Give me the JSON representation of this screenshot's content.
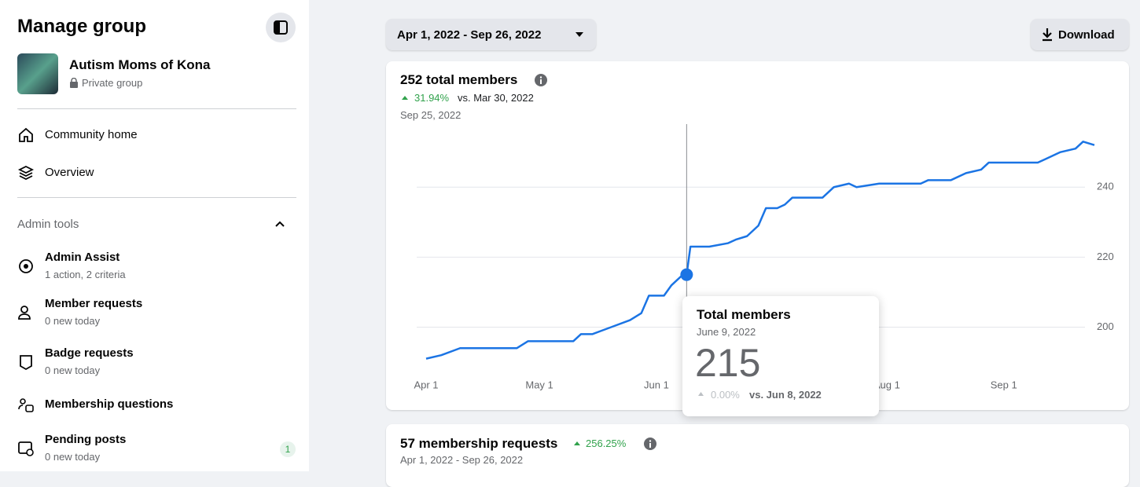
{
  "sidebar": {
    "title": "Manage group",
    "group_name": "Autism Moms of Kona",
    "privacy": "Private group",
    "nav": [
      "Community home",
      "Overview"
    ],
    "admin_tools": {
      "title": "Admin tools",
      "items": [
        {
          "label": "Admin Assist",
          "sub": "1 action, 2 criteria"
        },
        {
          "label": "Member requests",
          "sub": "0 new today"
        },
        {
          "label": "Badge requests",
          "sub": "0 new today"
        },
        {
          "label": "Membership questions"
        },
        {
          "label": "Pending posts",
          "sub": "0 new today",
          "badge": 1
        }
      ]
    }
  },
  "toolbar": {
    "date_range": "Apr 1, 2022 - Sep 26, 2022",
    "download": "Download"
  },
  "members_card": {
    "title": "252 total members",
    "change": "31.94%",
    "comparison": "vs. Mar 30, 2022",
    "date": "Sep 25, 2022"
  },
  "chart_data": {
    "type": "line",
    "x": [
      "2022-04-01",
      "2022-04-05",
      "2022-04-10",
      "2022-04-15",
      "2022-04-20",
      "2022-04-25",
      "2022-04-28",
      "2022-05-01",
      "2022-05-10",
      "2022-05-12",
      "2022-05-15",
      "2022-05-20",
      "2022-05-25",
      "2022-05-28",
      "2022-05-30",
      "2022-06-03",
      "2022-06-05",
      "2022-06-08",
      "2022-06-09",
      "2022-06-10",
      "2022-06-15",
      "2022-06-20",
      "2022-06-22",
      "2022-06-25",
      "2022-06-28",
      "2022-06-30",
      "2022-07-03",
      "2022-07-05",
      "2022-07-07",
      "2022-07-15",
      "2022-07-18",
      "2022-07-22",
      "2022-07-24",
      "2022-07-30",
      "2022-08-10",
      "2022-08-12",
      "2022-08-18",
      "2022-08-22",
      "2022-08-26",
      "2022-08-28",
      "2022-09-10",
      "2022-09-12",
      "2022-09-16",
      "2022-09-20",
      "2022-09-22",
      "2022-09-25"
    ],
    "series": [
      {
        "name": "Total members",
        "color": "#1b74e4",
        "values": [
          191,
          192,
          194,
          194,
          194,
          194,
          196,
          196,
          196,
          198,
          198,
          200,
          202,
          204,
          209,
          209,
          212,
          215,
          215,
          223,
          223,
          224,
          225,
          226,
          229,
          234,
          234,
          235,
          237,
          237,
          240,
          241,
          240,
          241,
          241,
          242,
          242,
          244,
          245,
          247,
          247,
          248,
          250,
          251,
          253,
          252
        ]
      }
    ],
    "xlim": [
      "2022-04-01",
      "2022-09-25"
    ],
    "xticks": [
      {
        "value": "2022-04-01",
        "label": "Apr 1"
      },
      {
        "value": "2022-05-01",
        "label": "May 1"
      },
      {
        "value": "2022-06-01",
        "label": "Jun 1"
      },
      {
        "value": "2022-08-01",
        "label": "Aug 1"
      },
      {
        "value": "2022-09-01",
        "label": "Sep 1"
      }
    ],
    "ylim": [
      188,
      258
    ],
    "yticks": [
      200,
      220,
      240
    ],
    "grid": true,
    "tooltip": {
      "index": 18,
      "date": "June 9, 2022",
      "value": 215,
      "change": "0.00%",
      "comparison": "vs. Jun 8, 2022"
    }
  },
  "requests_card": {
    "title": "57 membership requests",
    "change": "256.25%",
    "date": "Apr 1, 2022 - Sep 26, 2022"
  }
}
